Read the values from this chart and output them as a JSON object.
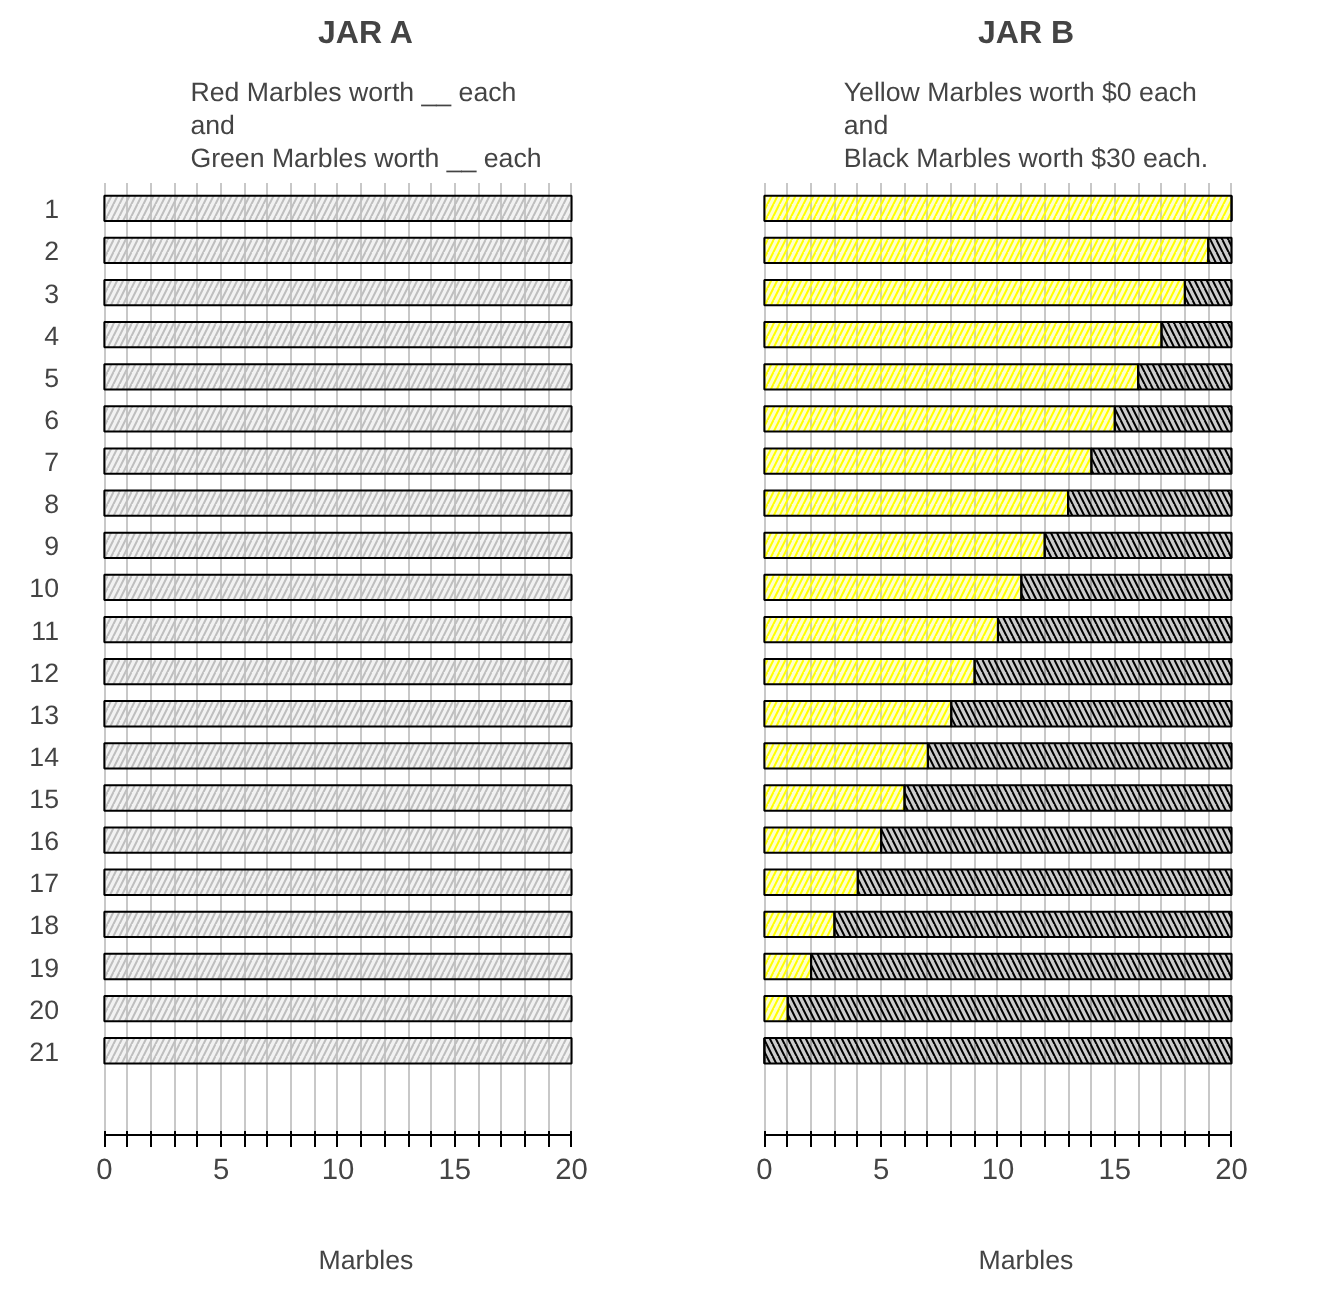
{
  "chart_data": [
    {
      "type": "bar",
      "orientation": "horizontal",
      "stacked": true,
      "title": "JAR A",
      "subtitle": "Red Marbles worth __ each\nand\nGreen Marbles worth __ each",
      "xlabel": "Marbles",
      "categories": [
        "1",
        "2",
        "3",
        "4",
        "5",
        "6",
        "7",
        "8",
        "9",
        "10",
        "11",
        "12",
        "13",
        "14",
        "15",
        "16",
        "17",
        "18",
        "19",
        "20",
        "21"
      ],
      "series": [
        {
          "color": "#bebebe",
          "values": [
            20,
            20,
            20,
            20,
            20,
            20,
            20,
            20,
            20,
            20,
            20,
            20,
            20,
            20,
            20,
            20,
            20,
            20,
            20,
            20,
            20
          ]
        }
      ],
      "xlim": [
        0,
        20
      ],
      "xticks": [
        0,
        {
          "value": 1,
          "label": null
        },
        {
          "value": 2,
          "label": null
        },
        {
          "value": 3,
          "label": null
        },
        {
          "value": 4,
          "label": null
        },
        5,
        {
          "value": 6,
          "label": null
        },
        {
          "value": 7,
          "label": null
        },
        {
          "value": 8,
          "label": null
        },
        {
          "value": 9,
          "label": null
        },
        10,
        {
          "value": 11,
          "label": null
        },
        {
          "value": 12,
          "label": null
        },
        {
          "value": 13,
          "label": null
        },
        {
          "value": 14,
          "label": null
        },
        15,
        {
          "value": 16,
          "label": null
        },
        {
          "value": 17,
          "label": null
        },
        {
          "value": 18,
          "label": null
        },
        {
          "value": 19,
          "label": null
        },
        20
      ],
      "grid": "x"
    },
    {
      "type": "bar",
      "orientation": "horizontal",
      "stacked": true,
      "title": "JAR B",
      "subtitle": "Yellow Marbles worth $0 each\nand\nBlack Marbles worth $30 each.",
      "xlabel": "Marbles",
      "categories": [
        "1",
        "2",
        "3",
        "4",
        "5",
        "6",
        "7",
        "8",
        "9",
        "10",
        "11",
        "12",
        "13",
        "14",
        "15",
        "16",
        "17",
        "18",
        "19",
        "20",
        "21"
      ],
      "series": [
        {
          "color": "#ffff00",
          "values": [
            20,
            19,
            18,
            17,
            16,
            15,
            14,
            13,
            12,
            11,
            10,
            9,
            8,
            7,
            6,
            5,
            4,
            3,
            2,
            1,
            0
          ]
        },
        {
          "color": "#000000",
          "values": [
            0,
            1,
            2,
            3,
            4,
            5,
            6,
            7,
            8,
            9,
            10,
            11,
            12,
            13,
            14,
            15,
            16,
            17,
            18,
            19,
            20
          ]
        }
      ],
      "xlim": [
        0,
        20
      ],
      "xticks": [
        0,
        {
          "value": 1,
          "label": null
        },
        {
          "value": 2,
          "label": null
        },
        {
          "value": 3,
          "label": null
        },
        {
          "value": 4,
          "label": null
        },
        5,
        {
          "value": 6,
          "label": null
        },
        {
          "value": 7,
          "label": null
        },
        {
          "value": 8,
          "label": null
        },
        {
          "value": 9,
          "label": null
        },
        10,
        {
          "value": 11,
          "label": null
        },
        {
          "value": 12,
          "label": null
        },
        {
          "value": 13,
          "label": null
        },
        {
          "value": 14,
          "label": null
        },
        15,
        {
          "value": 16,
          "label": null
        },
        {
          "value": 17,
          "label": null
        },
        {
          "value": 18,
          "label": null
        },
        {
          "value": 19,
          "label": null
        },
        20
      ],
      "grid": "x",
      "tick_labels": "x"
    }
  ]
}
